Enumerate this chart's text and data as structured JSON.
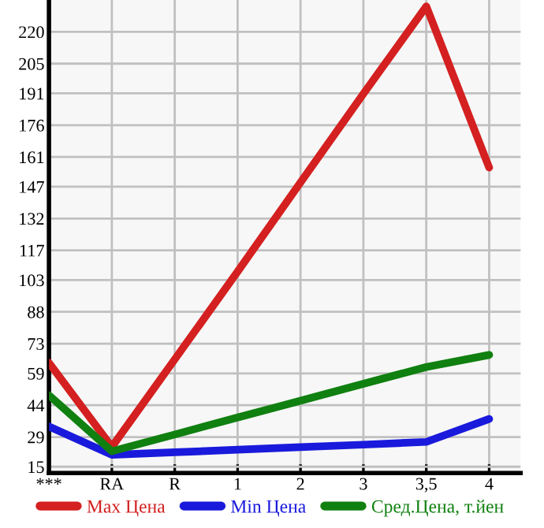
{
  "chart_data": {
    "type": "line",
    "categories": [
      "***",
      "RA",
      "R",
      "1",
      "2",
      "3",
      "3,5",
      "4"
    ],
    "series": [
      {
        "name": "Max Цена",
        "color": "#d42020",
        "values": [
          64,
          24.3,
          65.6,
          107,
          149,
          190.8,
          232,
          156
        ]
      },
      {
        "name": "Min Цена",
        "color": "#1a1adc",
        "values": [
          34,
          20.6,
          21.8,
          23,
          24.2,
          25.4,
          26.7,
          37.5
        ]
      },
      {
        "name": "Сред.Цена, т.йен",
        "color": "#108010",
        "values": [
          48.7,
          22.3,
          30.2,
          38.2,
          46.1,
          54.1,
          62,
          67.7
        ]
      }
    ],
    "ylim": [
      12,
      235
    ],
    "yticks": [
      15,
      29,
      44,
      59,
      73,
      88,
      103,
      117,
      132,
      147,
      161,
      176,
      191,
      205,
      220
    ],
    "grid": true,
    "legend": "bottom",
    "marker": "none",
    "line_style": "solid"
  }
}
